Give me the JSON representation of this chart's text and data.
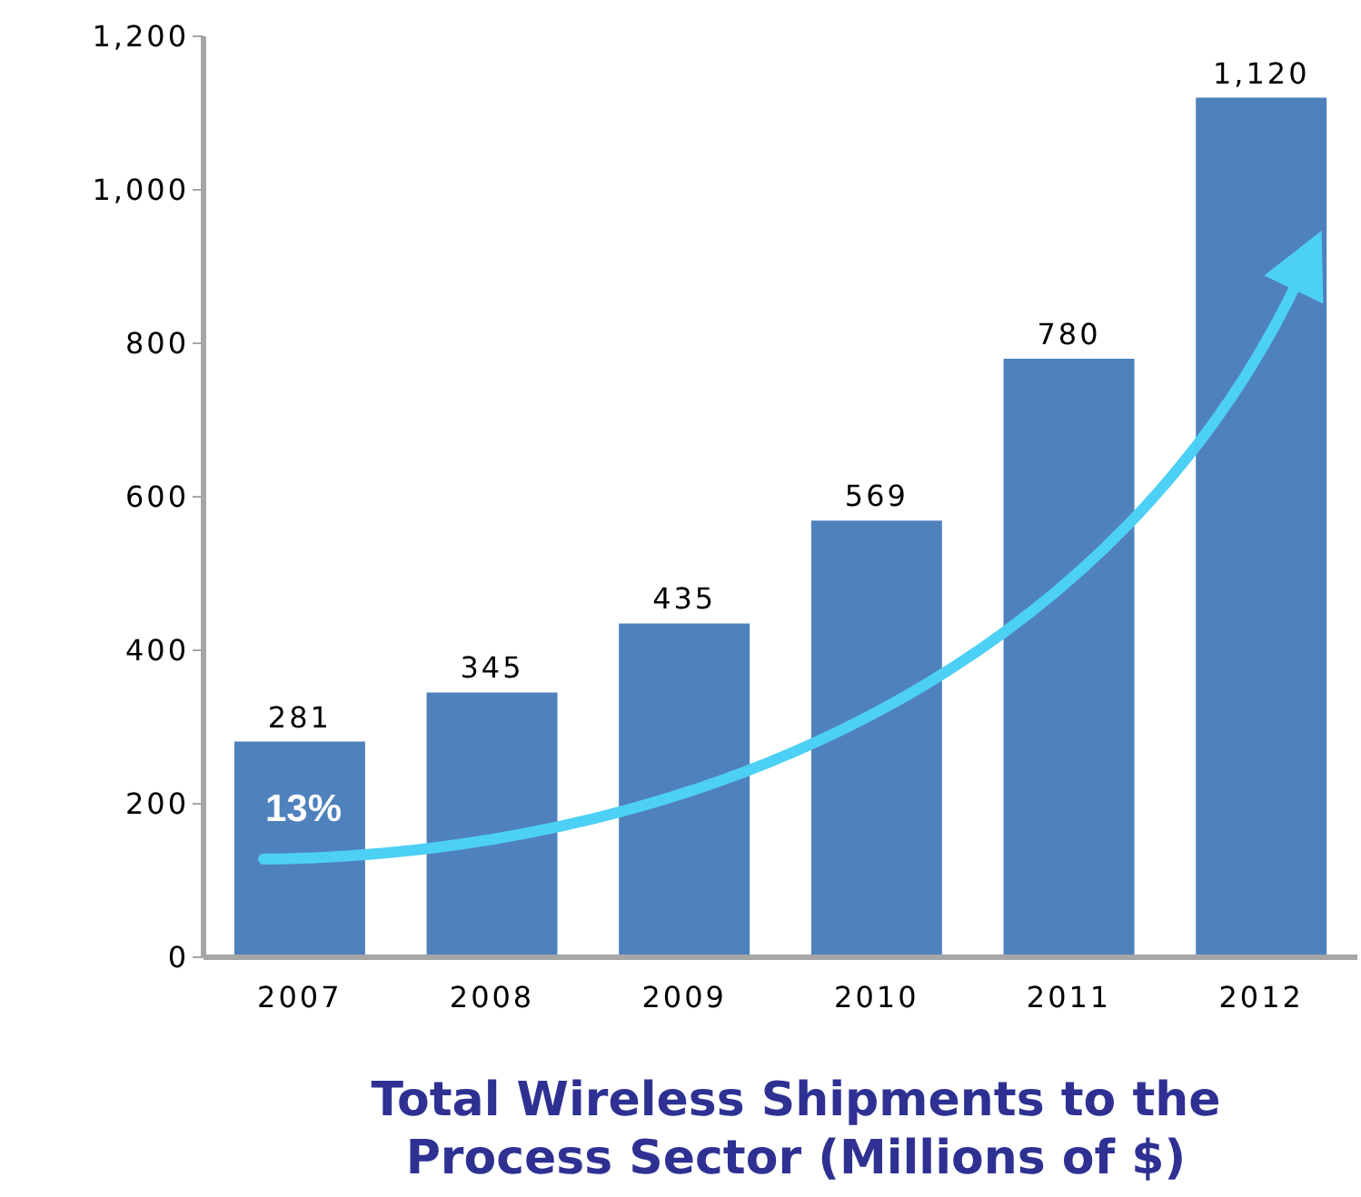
{
  "chart_data": {
    "type": "bar",
    "title": "Total Wireless Shipments to the Process Sector (Millions of $)",
    "categories": [
      "2007",
      "2008",
      "2009",
      "2010",
      "2011",
      "2012"
    ],
    "values": [
      281,
      345,
      435,
      569,
      780,
      1120
    ],
    "color": "#4f81bd",
    "ylim": [
      0,
      1200
    ],
    "yticks": [
      0,
      {
        "value": 200,
        "label": "200"
      },
      400,
      600,
      800,
      {
        "value": 1000,
        "label": "1,000"
      },
      {
        "value": 1200,
        "label": "1,200"
      }
    ],
    "data_labels": true,
    "value_labels": [
      "281",
      "345",
      "435",
      "569",
      "780",
      "1,120"
    ],
    "grid": false,
    "legend": false,
    "annotations": [
      "13%"
    ]
  }
}
